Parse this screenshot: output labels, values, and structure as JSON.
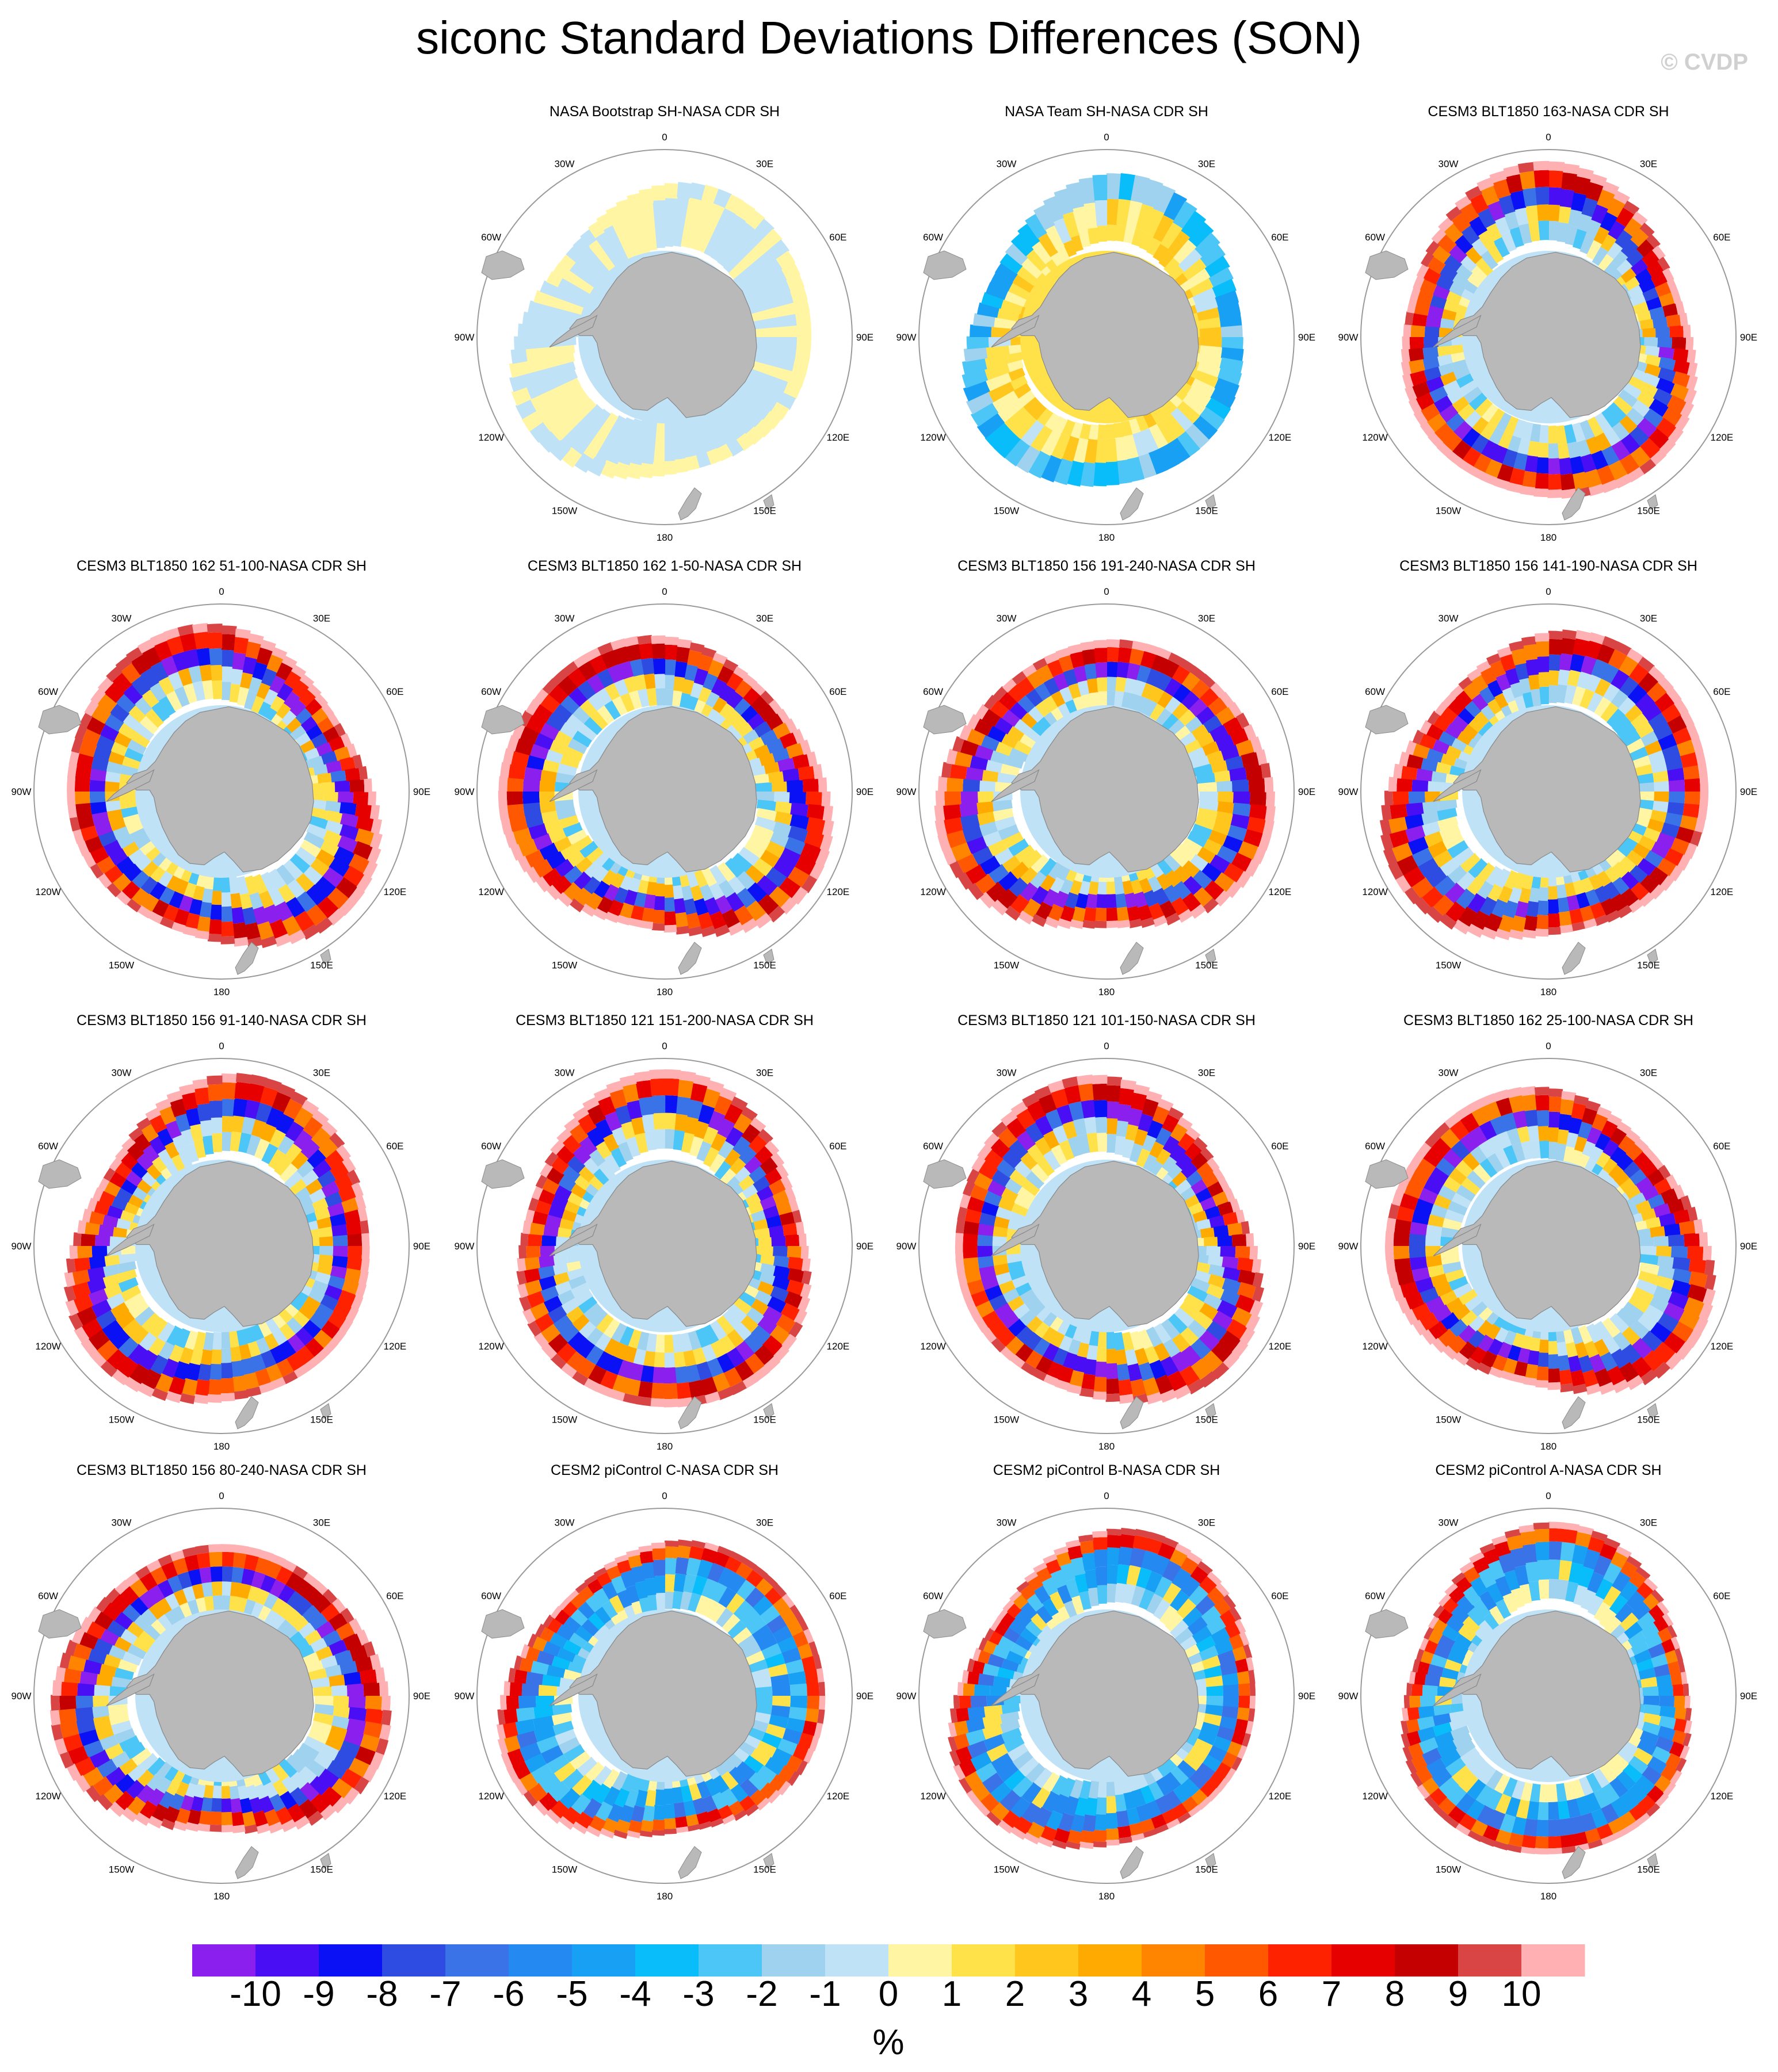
{
  "title": "siconc Standard Deviations Differences (SON)",
  "watermark": "© CVDP",
  "colorbar": {
    "labels": [
      "-10",
      "-9",
      "-8",
      "-7",
      "-6",
      "-5",
      "-4",
      "-3",
      "-2",
      "-1",
      "0",
      "1",
      "2",
      "3",
      "4",
      "5",
      "6",
      "7",
      "8",
      "9",
      "10"
    ],
    "colors": [
      "#8a1fee",
      "#4a0ef5",
      "#0a12f5",
      "#2e4be2",
      "#3a72e8",
      "#2589f2",
      "#18a0f5",
      "#08bdfa",
      "#4cc6f7",
      "#9ed2ee",
      "#bfe2f7",
      "#fff5a3",
      "#ffe14a",
      "#ffc61e",
      "#ffaa00",
      "#ff8500",
      "#ff5800",
      "#ff2200",
      "#e60000",
      "#c40000",
      "#d94545",
      "#ffb0b3"
    ],
    "units": "%"
  },
  "map": {
    "lon_labels": [
      "0",
      "30E",
      "60E",
      "90E",
      "120E",
      "150E",
      "180",
      "150W",
      "120W",
      "90W",
      "60W",
      "30W"
    ]
  },
  "chart_data": {
    "type": "heatmap",
    "title": "siconc Standard Deviations Differences (SON)",
    "projection": "south polar stereographic",
    "units": "%",
    "levels": [
      -10,
      -9,
      -8,
      -7,
      -6,
      -5,
      -4,
      -3,
      -2,
      -1,
      0,
      1,
      2,
      3,
      4,
      5,
      6,
      7,
      8,
      9,
      10
    ],
    "panels": [
      {
        "title": "NASA Bootstrap SH-NASA CDR SH",
        "style": "bootstrap"
      },
      {
        "title": "NASA Team SH-NASA CDR SH",
        "style": "team"
      },
      {
        "title": "CESM3 BLT1850 163-NASA CDR SH",
        "style": "model"
      },
      {
        "title": "CESM3 BLT1850 162 51-100-NASA CDR SH",
        "style": "model"
      },
      {
        "title": "CESM3 BLT1850 162 1-50-NASA CDR SH",
        "style": "model"
      },
      {
        "title": "CESM3 BLT1850 156 191-240-NASA CDR SH",
        "style": "model"
      },
      {
        "title": "CESM3 BLT1850 156 141-190-NASA CDR SH",
        "style": "model"
      },
      {
        "title": "CESM3 BLT1850 156 91-140-NASA CDR SH",
        "style": "model"
      },
      {
        "title": "CESM3 BLT1850 121 151-200-NASA CDR SH",
        "style": "model"
      },
      {
        "title": "CESM3 BLT1850 121 101-150-NASA CDR SH",
        "style": "model"
      },
      {
        "title": "CESM3 BLT1850 162 25-100-NASA CDR SH",
        "style": "model"
      },
      {
        "title": "CESM3 BLT1850 156 80-240-NASA CDR SH",
        "style": "model"
      },
      {
        "title": "CESM2 piControl C-NASA CDR SH",
        "style": "cesm2"
      },
      {
        "title": "CESM2 piControl B-NASA CDR SH",
        "style": "cesm2"
      },
      {
        "title": "CESM2 piControl A-NASA CDR SH",
        "style": "cesm2"
      }
    ]
  }
}
